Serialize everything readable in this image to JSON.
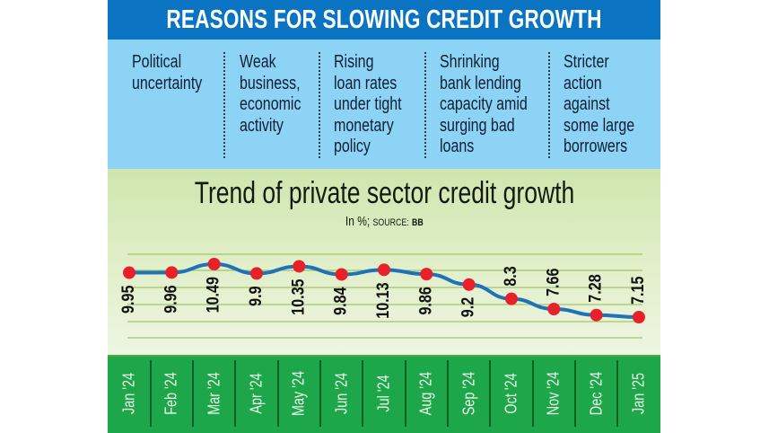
{
  "header": {
    "title": "REASONS FOR SLOWING CREDIT GROWTH"
  },
  "reasons": [
    {
      "text": "Political\nuncertainty"
    },
    {
      "text": "Weak\nbusiness,\neconomic\nactivity"
    },
    {
      "text": "Rising\nloan rates\nunder tight\nmonetary\npolicy"
    },
    {
      "text": "Shrinking\nbank lending\ncapacity amid\nsurging bad\nloans"
    },
    {
      "text": "Stricter\naction\nagainst\nsome large\nborrowers"
    }
  ],
  "chart": {
    "title": "Trend of private sector credit growth",
    "unit": "In %;",
    "source_label": "SOURCE:",
    "source": "BB"
  },
  "colors": {
    "header_bg": "#0a74c2",
    "reasons_bg": "#8dd3f5",
    "line": "#1f72b8",
    "marker": "#e8202a",
    "gridline": "#9cc86a",
    "xbar_bg": "#1da64a"
  },
  "chart_data": {
    "type": "line",
    "title": "Trend of private sector credit growth",
    "subtitle": "In %; SOURCE: BB",
    "xlabel": "",
    "ylabel": "In %",
    "categories": [
      "Jan '24",
      "Feb '24",
      "Mar '24",
      "Apr '24",
      "May '24",
      "Jun '24",
      "Jul '24",
      "Aug '24",
      "Sep '24",
      "Oct '24",
      "Nov '24",
      "Dec '24",
      "Jan '25"
    ],
    "series": [
      {
        "name": "Private sector credit growth",
        "values": [
          9.95,
          9.96,
          10.49,
          9.9,
          10.35,
          9.84,
          10.13,
          9.86,
          9.2,
          8.3,
          7.66,
          7.28,
          7.15
        ]
      }
    ],
    "data_labels": [
      "9.95",
      "9.96",
      "10.49",
      "9.9",
      "10.35",
      "9.84",
      "10.13",
      "9.86",
      "9.2",
      "8.3",
      "7.66",
      "7.28",
      "7.15"
    ],
    "grid": true,
    "legend": null
  }
}
